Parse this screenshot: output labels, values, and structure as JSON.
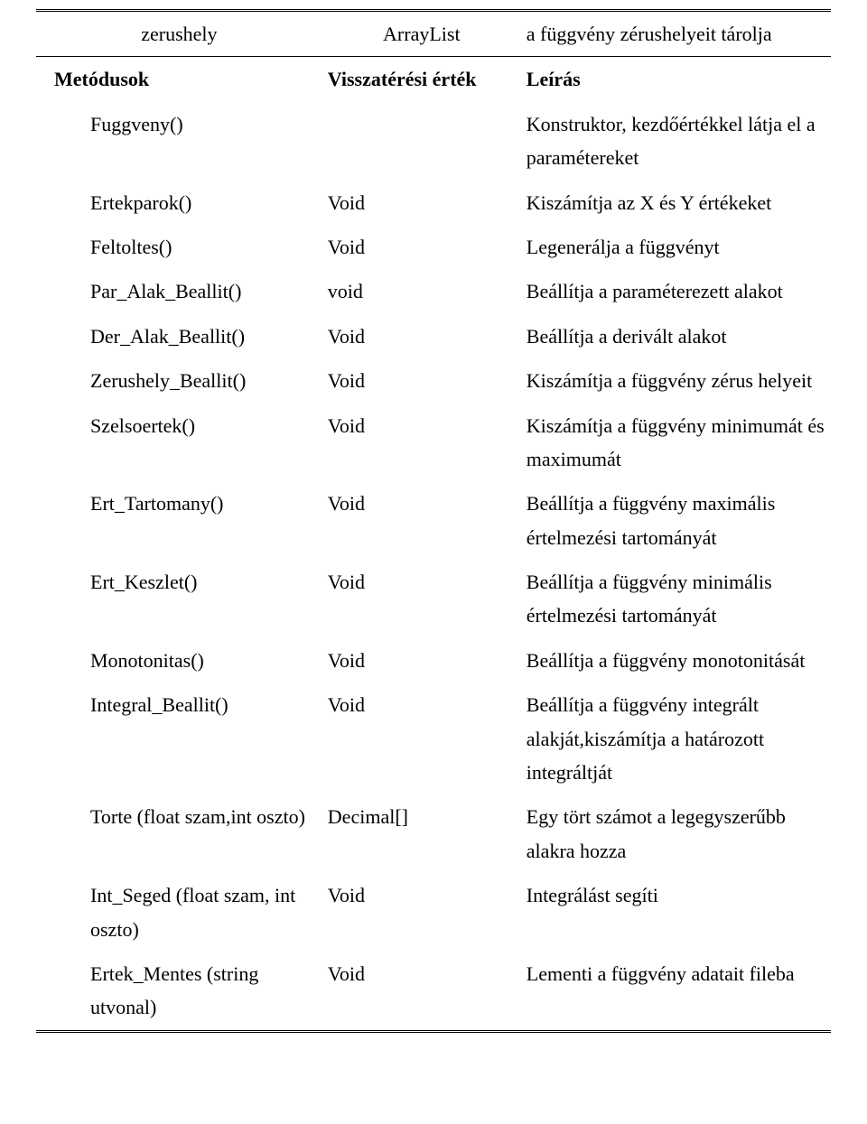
{
  "row0": {
    "col1": "zerushely",
    "col2": "ArrayList",
    "col3": "a függvény zérushelyeit tárolja"
  },
  "header": {
    "col1": "Metódusok",
    "col2": "Visszatérési érték",
    "col3": "Leírás"
  },
  "rows": [
    {
      "col1": "Fuggveny()",
      "col2": "",
      "col3": "Konstruktor, kezdőértékkel látja el a paramétereket"
    },
    {
      "col1": "Ertekparok()",
      "col2": "Void",
      "col3": "Kiszámítja az X és Y értékeket"
    },
    {
      "col1": "Feltoltes()",
      "col2": "Void",
      "col3": "Legenerálja a függvényt"
    },
    {
      "col1": "Par_Alak_Beallit()",
      "col2": "void",
      "col3": "Beállítja a paraméterezett alakot"
    },
    {
      "col1": "Der_Alak_Beallit()",
      "col2": "Void",
      "col3": "Beállítja a derivált alakot"
    },
    {
      "col1": "Zerushely_Beallit()",
      "col2": "Void",
      "col3": "Kiszámítja a függvény zérus helyeit"
    },
    {
      "col1": "Szelsoertek()",
      "col2": "Void",
      "col3": "Kiszámítja a függvény minimumát és maximumát"
    },
    {
      "col1": "Ert_Tartomany()",
      "col2": "Void",
      "col3": "Beállítja a függvény maximális értelmezési tartományát"
    },
    {
      "col1": "Ert_Keszlet()",
      "col2": "Void",
      "col3": "Beállítja a függvény minimális értelmezési tartományát"
    },
    {
      "col1": "Monotonitas()",
      "col2": "Void",
      "col3": "Beállítja a függvény monotonitását"
    },
    {
      "col1": "Integral_Beallit()",
      "col2": "Void",
      "col3": "Beállítja a függvény integrált alakját,kiszámítja a határozott integráltját"
    },
    {
      "col1": "Torte\n(float szam,int oszto)",
      "col2": "Decimal[]",
      "col3": "Egy tört számot a legegyszerűbb alakra hozza"
    },
    {
      "col1": "Int_Seged\n(float szam, int oszto)",
      "col2": "Void",
      "col3": "Integrálást segíti"
    },
    {
      "col1": "Ertek_Mentes\n(string utvonal)",
      "col2": "Void",
      "col3": "Lementi a függvény adatait fileba"
    }
  ]
}
